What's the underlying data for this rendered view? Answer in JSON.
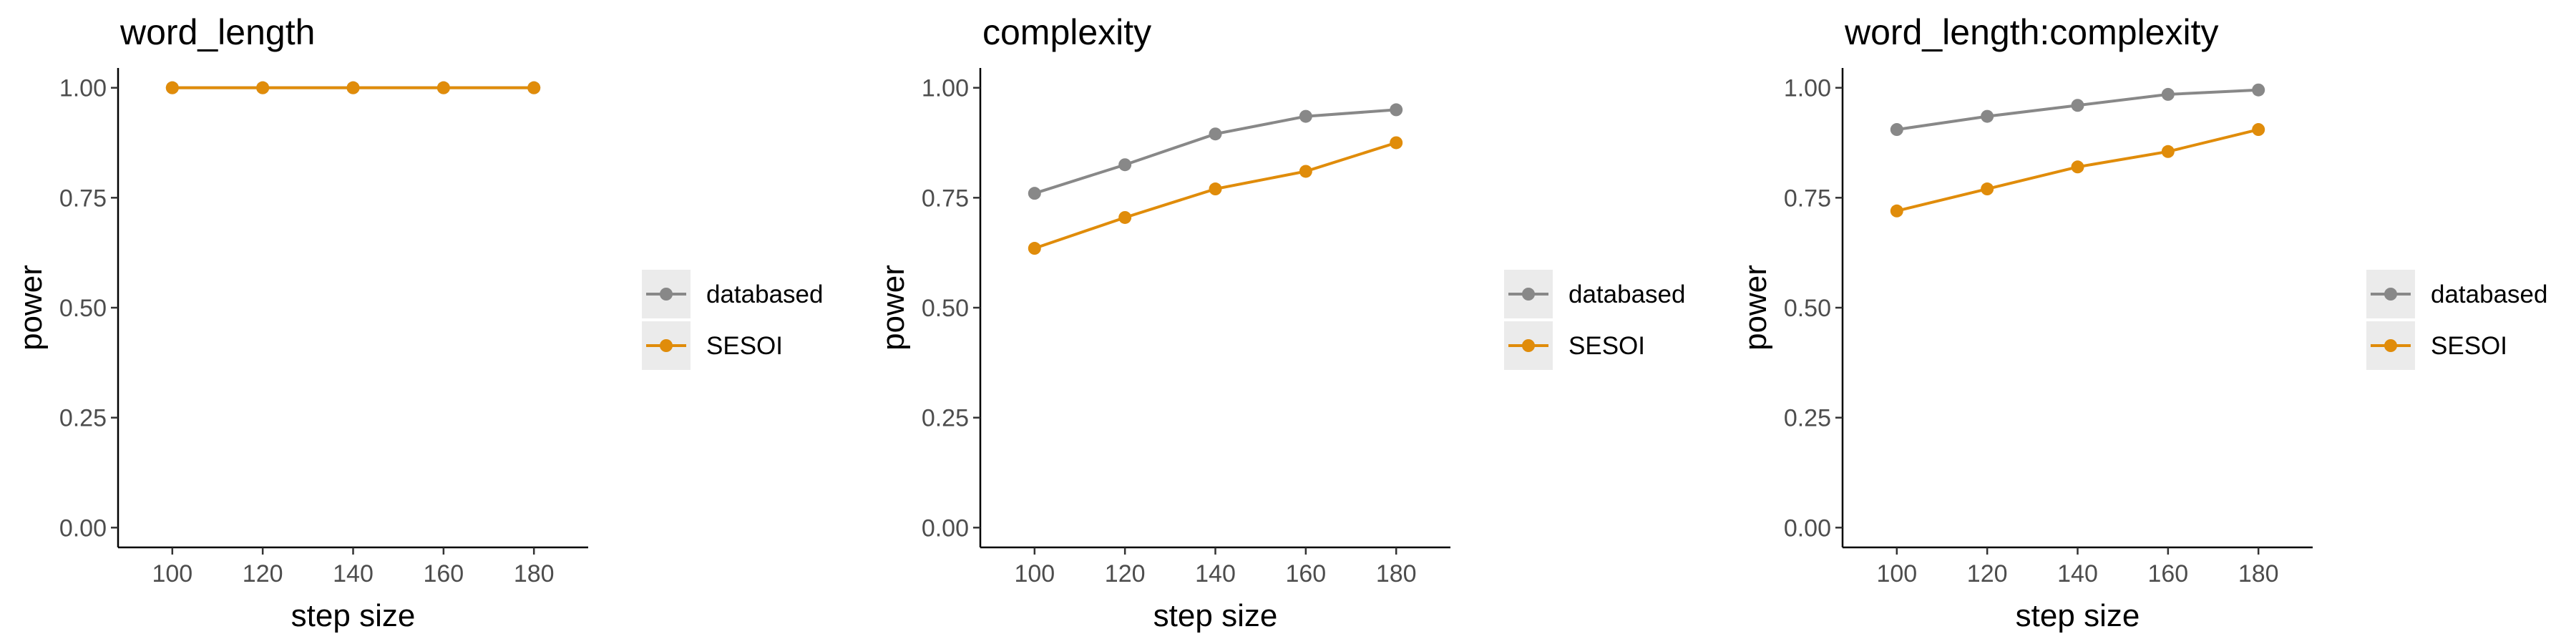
{
  "chart_data": [
    {
      "type": "line",
      "title": "word_length",
      "xlabel": "step size",
      "ylabel": "power",
      "x": [
        100,
        120,
        140,
        160,
        180
      ],
      "xlim": [
        88,
        192
      ],
      "ylim": [
        -0.045,
        1.045
      ],
      "xticks": [
        "100",
        "120",
        "140",
        "160",
        "180"
      ],
      "yticks": [
        "0.00",
        "0.25",
        "0.50",
        "0.75",
        "1.00"
      ],
      "grid": false,
      "legend": "right",
      "series": [
        {
          "name": "databased",
          "color": "#888888",
          "values": [
            1.0,
            1.0,
            1.0,
            1.0,
            1.0
          ]
        },
        {
          "name": "SESOI",
          "color": "#E08C0A",
          "values": [
            1.0,
            1.0,
            1.0,
            1.0,
            1.0
          ]
        }
      ]
    },
    {
      "type": "line",
      "title": "complexity",
      "xlabel": "step size",
      "ylabel": "power",
      "x": [
        100,
        120,
        140,
        160,
        180
      ],
      "xlim": [
        88,
        192
      ],
      "ylim": [
        -0.045,
        1.045
      ],
      "xticks": [
        "100",
        "120",
        "140",
        "160",
        "180"
      ],
      "yticks": [
        "0.00",
        "0.25",
        "0.50",
        "0.75",
        "1.00"
      ],
      "grid": false,
      "legend": "right",
      "series": [
        {
          "name": "databased",
          "color": "#888888",
          "values": [
            0.76,
            0.825,
            0.895,
            0.935,
            0.95
          ]
        },
        {
          "name": "SESOI",
          "color": "#E08C0A",
          "values": [
            0.635,
            0.705,
            0.77,
            0.81,
            0.875
          ]
        }
      ]
    },
    {
      "type": "line",
      "title": "word_length:complexity",
      "xlabel": "step size",
      "ylabel": "power",
      "x": [
        100,
        120,
        140,
        160,
        180
      ],
      "xlim": [
        88,
        192
      ],
      "ylim": [
        -0.045,
        1.045
      ],
      "xticks": [
        "100",
        "120",
        "140",
        "160",
        "180"
      ],
      "yticks": [
        "0.00",
        "0.25",
        "0.50",
        "0.75",
        "1.00"
      ],
      "grid": false,
      "legend": "right",
      "series": [
        {
          "name": "databased",
          "color": "#888888",
          "values": [
            0.905,
            0.935,
            0.96,
            0.985,
            0.995
          ]
        },
        {
          "name": "SESOI",
          "color": "#E08C0A",
          "values": [
            0.72,
            0.77,
            0.82,
            0.855,
            0.905
          ]
        }
      ]
    }
  ]
}
